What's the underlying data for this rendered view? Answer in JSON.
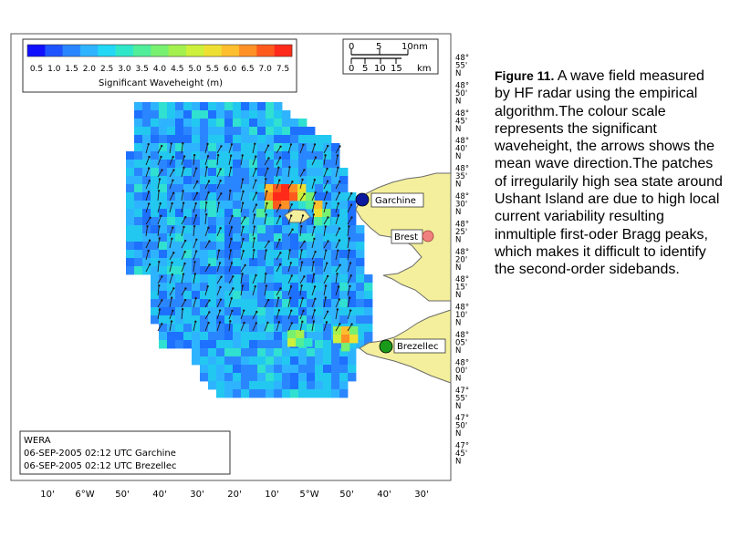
{
  "colorbar": {
    "title": "Significant Waveheight (m)",
    "ticks": [
      "0.5",
      "1.0",
      "1.5",
      "2.0",
      "2.5",
      "3.0",
      "3.5",
      "4.0",
      "4.5",
      "5.0",
      "5.5",
      "6.0",
      "6.5",
      "7.0",
      "7.5"
    ],
    "colors": [
      "#1010ff",
      "#1e54ff",
      "#2a86ff",
      "#2eb4ff",
      "#22d8f4",
      "#30e6c8",
      "#50ee9a",
      "#78f070",
      "#a4f04e",
      "#ccf03c",
      "#eee032",
      "#ffbe2e",
      "#ff9026",
      "#ff5a1e",
      "#ff2a1a"
    ]
  },
  "scale_bar": {
    "nm_ticks": [
      "0",
      "5",
      "10nm"
    ],
    "km_ticks": [
      "0",
      "5",
      "10",
      "15",
      "km"
    ]
  },
  "stations": [
    {
      "name": "Garchine",
      "color": "#0b1a9e"
    },
    {
      "name": "Brest",
      "color": "#f08080"
    },
    {
      "name": "Brezellec",
      "color": "#1a9a1a"
    }
  ],
  "info_box": {
    "system": "WERA",
    "line1": "06-SEP-2005 02:12 UTC Garchine",
    "line2": "06-SEP-2005 02:12 UTC Brezellec"
  },
  "x_axis": [
    "10'",
    "6°W",
    "50'",
    "40'",
    "30'",
    "20'",
    "10'",
    "5°W",
    "50'",
    "40'",
    "30'"
  ],
  "y_axis": [
    {
      "deg": "48°",
      "min": "55'",
      "hem": "N"
    },
    {
      "deg": "48°",
      "min": "50'",
      "hem": "N"
    },
    {
      "deg": "48°",
      "min": "45'",
      "hem": "N"
    },
    {
      "deg": "48°",
      "min": "40'",
      "hem": "N"
    },
    {
      "deg": "48°",
      "min": "35'",
      "hem": "N"
    },
    {
      "deg": "48°",
      "min": "30'",
      "hem": "N"
    },
    {
      "deg": "48°",
      "min": "25'",
      "hem": "N"
    },
    {
      "deg": "48°",
      "min": "20'",
      "hem": "N"
    },
    {
      "deg": "48°",
      "min": "15'",
      "hem": "N"
    },
    {
      "deg": "48°",
      "min": "10'",
      "hem": "N"
    },
    {
      "deg": "48°",
      "min": "05'",
      "hem": "N"
    },
    {
      "deg": "48°",
      "min": "00'",
      "hem": "N"
    },
    {
      "deg": "47°",
      "min": "55'",
      "hem": "N"
    },
    {
      "deg": "47°",
      "min": "50'",
      "hem": "N"
    },
    {
      "deg": "47°",
      "min": "45'",
      "hem": "N"
    }
  ],
  "colors": {
    "land": "#f3ef9c",
    "coast": "#6b6b6b",
    "sea_base": "#2e9ae8"
  },
  "caption": {
    "label": "Figure 11.",
    "text": "A wave field measured by HF radar using the empirical algorithm.The colour scale represents the significant waveheight, the arrows shows the mean wave direction.The patches of irregularily high sea state around Ushant Island are due to high local current variability resulting inmultiple first-oder Bragg peaks, which makes it difficult to identify the second-order sidebands."
  }
}
